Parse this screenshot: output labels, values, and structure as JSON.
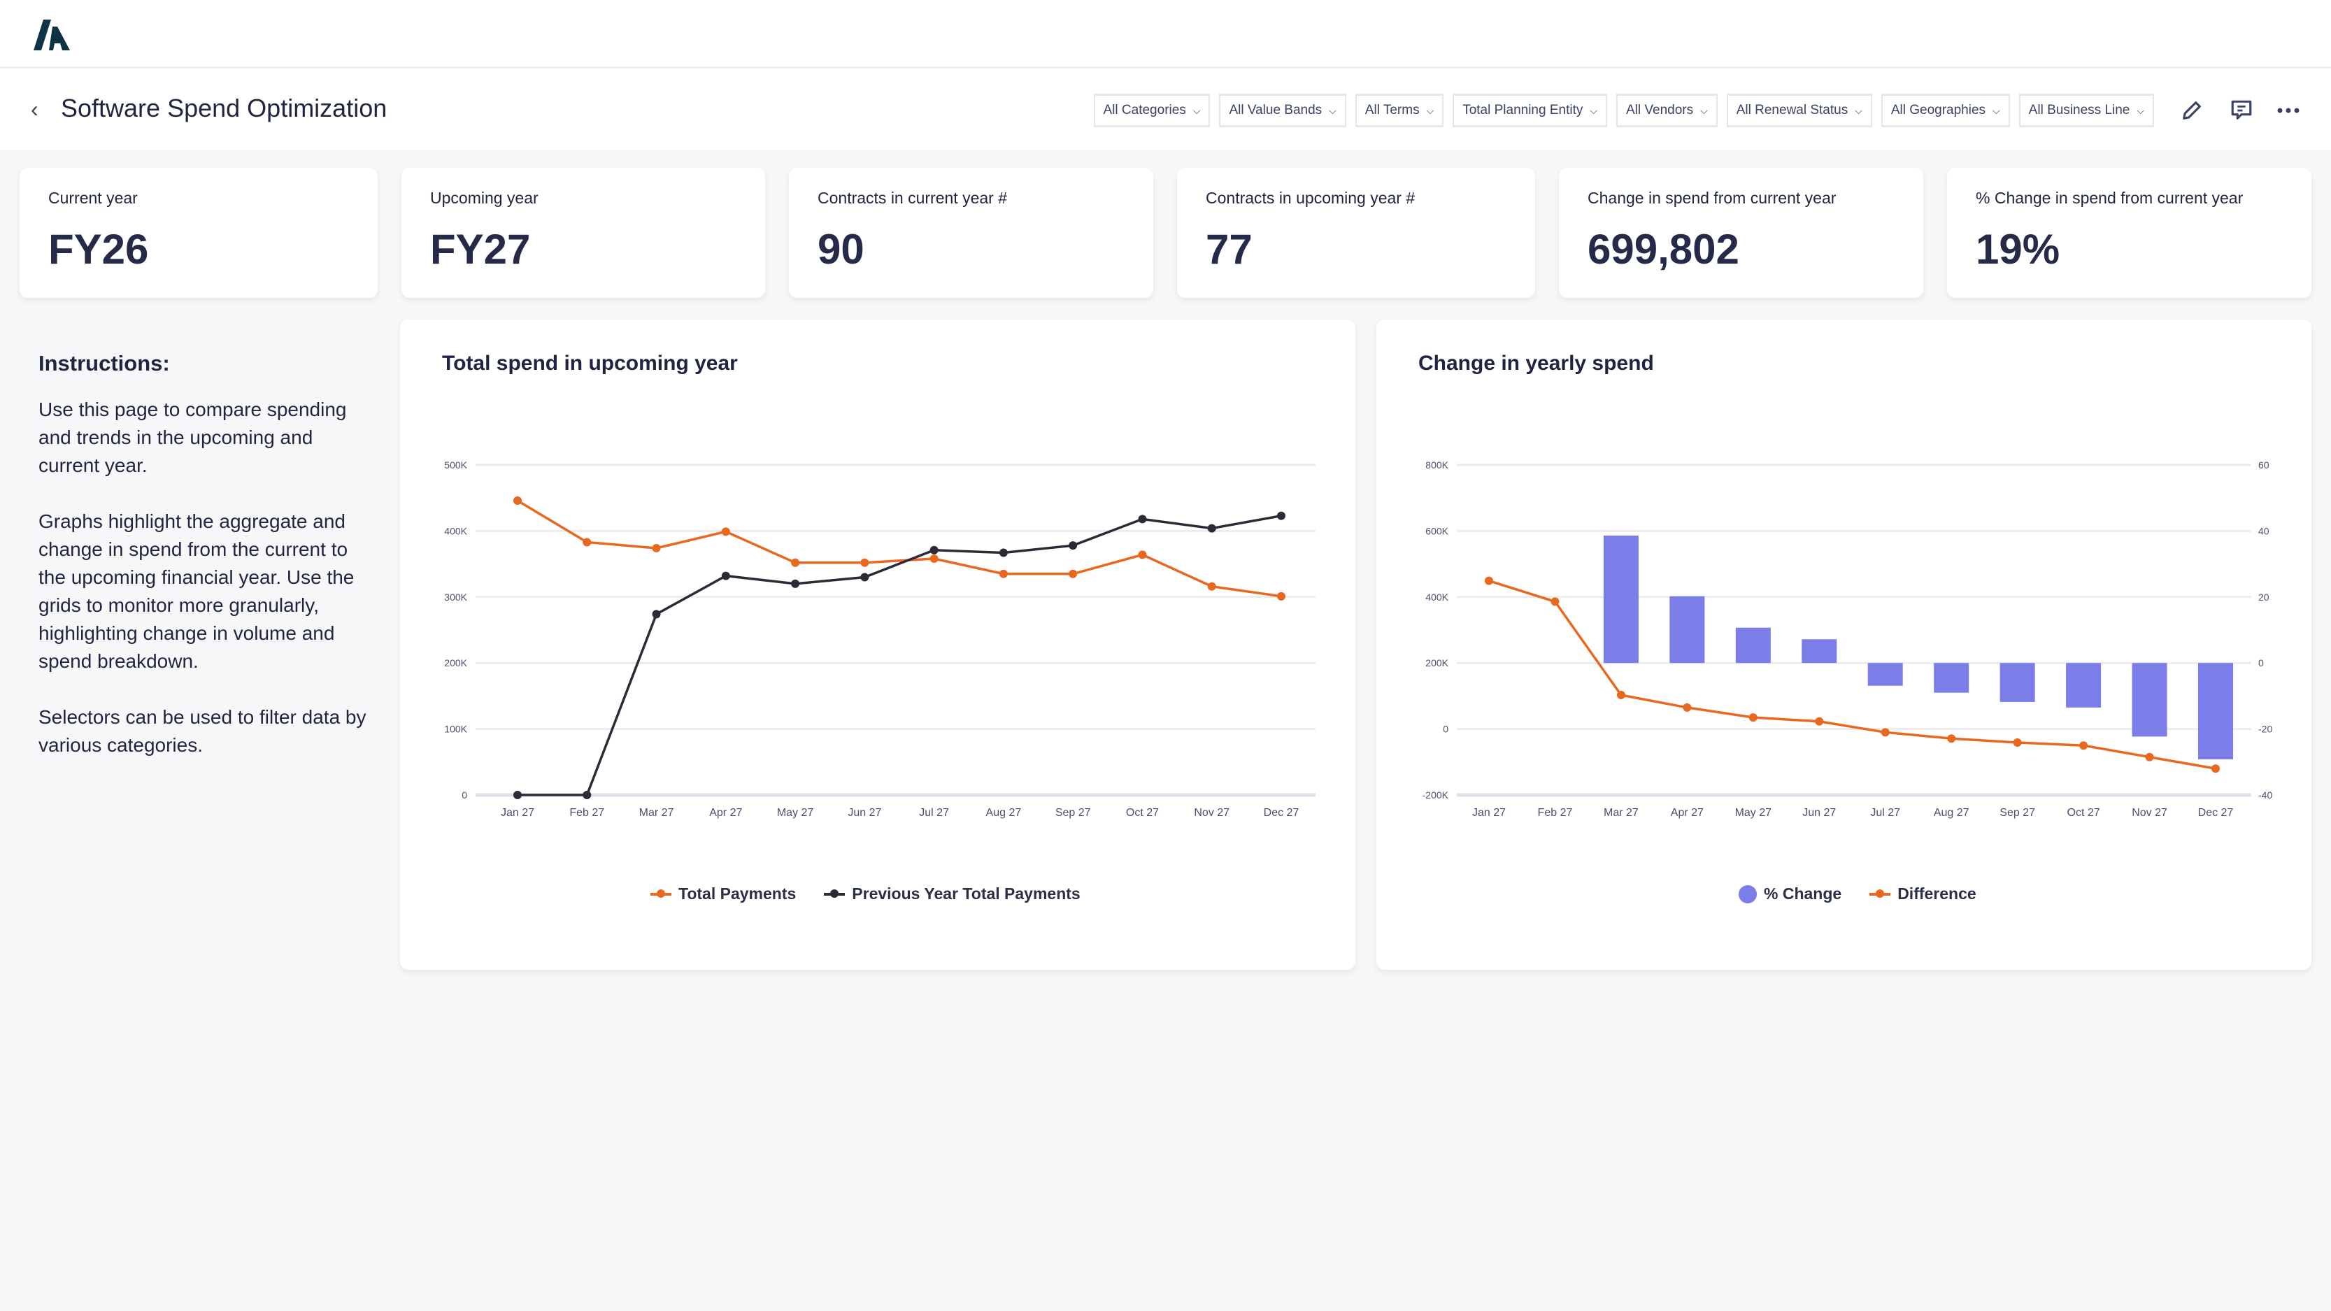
{
  "app": {
    "logo": "A"
  },
  "header": {
    "title": "Software Spend Optimization",
    "filters": [
      "All Categories",
      "All Value Bands",
      "All Terms",
      "Total Planning Entity",
      "All Vendors",
      "All Renewal Status",
      "All Geographies",
      "All Business Line"
    ],
    "icons": [
      "pencil-icon",
      "comment-icon",
      "more-icon"
    ]
  },
  "kpis": [
    {
      "label": "Current year",
      "value": "FY26"
    },
    {
      "label": "Upcoming year",
      "value": "FY27"
    },
    {
      "label": "Contracts in current year #",
      "value": "90"
    },
    {
      "label": "Contracts in upcoming year #",
      "value": "77"
    },
    {
      "label": "Change in spend from current year",
      "value": "699,802"
    },
    {
      "label": "% Change in spend from current year",
      "value": "19%"
    }
  ],
  "instructions": {
    "heading": "Instructions:",
    "paragraphs": [
      "Use this page to compare spending and trends in the upcoming and current year.",
      "Graphs highlight the aggregate and change in spend from the current to the upcoming financial year. Use the grids to monitor more granularly, highlighting change in volume and spend breakdown.",
      "Selectors can be used to filter data by various categories."
    ]
  },
  "colors": {
    "orange": "#e8681f",
    "dark": "#2c2a36",
    "bar": "#7b7ee8"
  },
  "chart_data": [
    {
      "type": "line",
      "title": "Total spend in upcoming year",
      "categories": [
        "Jan 27",
        "Feb 27",
        "Mar 27",
        "Apr 27",
        "May 27",
        "Jun 27",
        "Jul 27",
        "Aug 27",
        "Sep 27",
        "Oct 27",
        "Nov 27",
        "Dec 27"
      ],
      "ylim": [
        0,
        500000
      ],
      "yticks": [
        0,
        100000,
        200000,
        300000,
        400000,
        500000
      ],
      "ytick_labels": [
        "0",
        "100K",
        "200K",
        "300K",
        "400K",
        "500K"
      ],
      "grid": true,
      "legend": "bottom",
      "series": [
        {
          "name": "Total Payments",
          "color": "#e8681f",
          "values": [
            446000,
            383000,
            374000,
            399000,
            352000,
            352000,
            358000,
            335000,
            335000,
            364000,
            316000,
            301000
          ]
        },
        {
          "name": "Previous Year Total Payments",
          "color": "#2c2a36",
          "values": [
            0,
            0,
            274000,
            332000,
            320000,
            330000,
            371000,
            367000,
            378000,
            418000,
            404000,
            423000
          ]
        }
      ]
    },
    {
      "type": "bar+line",
      "title": "Change in yearly spend",
      "categories": [
        "Jan 27",
        "Feb 27",
        "Mar 27",
        "Apr 27",
        "May 27",
        "Jun 27",
        "Jul 27",
        "Aug 27",
        "Sep 27",
        "Oct 27",
        "Nov 27",
        "Dec 27"
      ],
      "ylim_left": [
        -200000,
        800000
      ],
      "yticks_left": [
        -200000,
        0,
        200000,
        400000,
        600000,
        800000
      ],
      "ytick_labels_left": [
        "-200K",
        "0",
        "200K",
        "400K",
        "600K",
        "800K"
      ],
      "ylim_right": [
        -40,
        60
      ],
      "yticks_right": [
        -40,
        -20,
        0,
        20,
        40,
        60
      ],
      "ytick_labels_right": [
        "-40",
        "-20",
        "0",
        "20",
        "40",
        "60"
      ],
      "grid": true,
      "legend": "bottom",
      "series": [
        {
          "name": "% Change",
          "type": "bar",
          "axis": "right",
          "color": "#7b7ee8",
          "values": [
            null,
            null,
            38.6,
            20.2,
            10.7,
            7.2,
            -6.9,
            -9.0,
            -11.8,
            -13.5,
            -22.3,
            -29.2
          ]
        },
        {
          "name": "Difference",
          "type": "line",
          "axis": "left",
          "color": "#e8681f",
          "values": [
            449000,
            386000,
            103000,
            65000,
            35000,
            23000,
            -10000,
            -29000,
            -41000,
            -50000,
            -85000,
            -120000
          ]
        }
      ]
    }
  ]
}
